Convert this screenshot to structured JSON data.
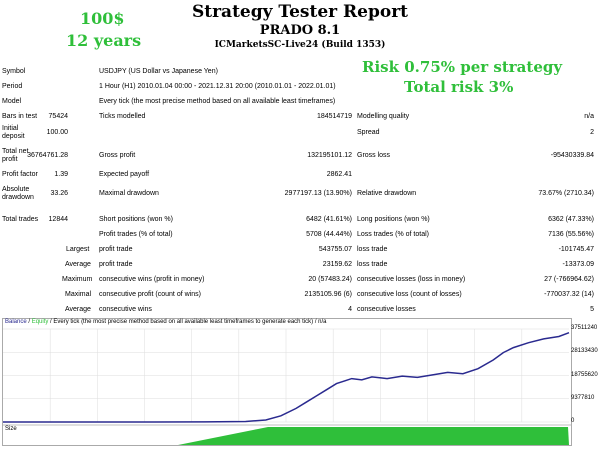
{
  "header": {
    "title": "Strategy Tester Report",
    "ea_name": "PRADO 8.1",
    "server_build": "ICMarketsSC-Live24 (Build 1353)"
  },
  "overlay": {
    "deposit": "100$",
    "years": "12 years",
    "risk_per_strategy": "Risk 0.75% per strategy",
    "total_risk": "Total risk 3%"
  },
  "settings": {
    "symbol_label": "Symbol",
    "symbol_value": "USDJPY (US Dollar vs Japanese Yen)",
    "period_label": "Period",
    "period_value": "1 Hour (H1) 2010.01.04 00:00 - 2021.12.31 20:00 (2010.01.01 - 2022.01.01)",
    "model_label": "Model",
    "model_value": "Every tick (the most precise method based on all available least timeframes)"
  },
  "results": {
    "bars_label": "Bars in test",
    "bars_value": "75424",
    "ticks_label": "Ticks modelled",
    "ticks_value": "184514719",
    "quality_label": "Modelling quality",
    "quality_value": "n/a",
    "deposit_label_1": "Initial",
    "deposit_label_2": "deposit",
    "deposit_value": "100.00",
    "spread_label": "Spread",
    "spread_value": "2",
    "net_label_1": "Total net",
    "net_label_2": "profit",
    "net_value": "36764761.28",
    "gross_profit_label": "Gross profit",
    "gross_profit_value": "132195101.12",
    "gross_loss_label": "Gross loss",
    "gross_loss_value": "-95430339.84",
    "pf_label": "Profit factor",
    "pf_value": "1.39",
    "payoff_label": "Expected payoff",
    "payoff_value": "2862.41",
    "abs_dd_label_1": "Absolute",
    "abs_dd_label_2": "drawdown",
    "abs_dd_value": "33.26",
    "max_dd_label": "Maximal drawdown",
    "max_dd_value": "2977197.13 (13.90%)",
    "rel_dd_label": "Relative drawdown",
    "rel_dd_value": "73.67% (2710.34)",
    "trades_label": "Total trades",
    "trades_value": "12844",
    "short_label": "Short positions (won %)",
    "short_value": "6482 (41.61%)",
    "long_label": "Long positions (won %)",
    "long_value": "6362 (47.33%)",
    "profit_trades_label": "Profit trades (% of total)",
    "profit_trades_value": "5708 (44.44%)",
    "loss_trades_label": "Loss trades (% of total)",
    "loss_trades_value": "7136 (55.56%)",
    "largest_word": "Largest",
    "largest_profit_label": "profit trade",
    "largest_profit_value": "543755.07",
    "largest_loss_label": "loss trade",
    "largest_loss_value": "-101745.47",
    "average_word": "Average",
    "average_profit_label": "profit trade",
    "average_profit_value": "23159.62",
    "average_loss_label": "loss trade",
    "average_loss_value": "-13373.09",
    "maximum_word": "Maximum",
    "max_wins_label": "consecutive wins (profit in money)",
    "max_wins_value": "20 (57483.24)",
    "max_losses_label": "consecutive losses (loss in money)",
    "max_losses_value": "27 (-766964.62)",
    "maximal_word": "Maximal",
    "maximal_profit_label": "consecutive profit (count of wins)",
    "maximal_profit_value": "2135105.96 (6)",
    "maximal_loss_label": "consecutive loss (count of losses)",
    "maximal_loss_value": "-770037.32 (14)",
    "avg_consec_word": "Average",
    "avg_wins_label": "consecutive wins",
    "avg_wins_value": "4",
    "avg_losses_label": "consecutive losses",
    "avg_losses_value": "5"
  },
  "chart": {
    "caption_balance": "Balance",
    "caption_sep": " / ",
    "caption_equity": "Equity",
    "caption_rest": " / Every tick (the most precise method based on all available least timeframes to generate each tick) / n/a",
    "size_label": "Size",
    "y_ticks": [
      "37511240",
      "28133430",
      "18755620",
      "9377810",
      "0"
    ],
    "balance_color": "#2a2a8f",
    "equity_color": "#2fbf3a",
    "grid_color": "#dddddd"
  },
  "chart_data": {
    "type": "line",
    "ylim": [
      0,
      37511240
    ],
    "series": [
      {
        "name": "Balance",
        "x": [
          0,
          50,
          100,
          150,
          200,
          240,
          260,
          275,
          290,
          300,
          310,
          320,
          330,
          345,
          355,
          365,
          380,
          395,
          410,
          425,
          440,
          455,
          470,
          485,
          495,
          505,
          520,
          535,
          550,
          560
        ],
        "values": [
          0,
          0,
          0,
          20000,
          60000,
          200000,
          800000,
          2500000,
          5500000,
          8000000,
          10500000,
          13000000,
          15500000,
          17500000,
          17000000,
          18200000,
          17500000,
          18500000,
          18000000,
          19000000,
          20000000,
          19500000,
          21500000,
          25000000,
          28000000,
          30000000,
          32000000,
          33500000,
          34500000,
          36000000
        ]
      }
    ]
  }
}
